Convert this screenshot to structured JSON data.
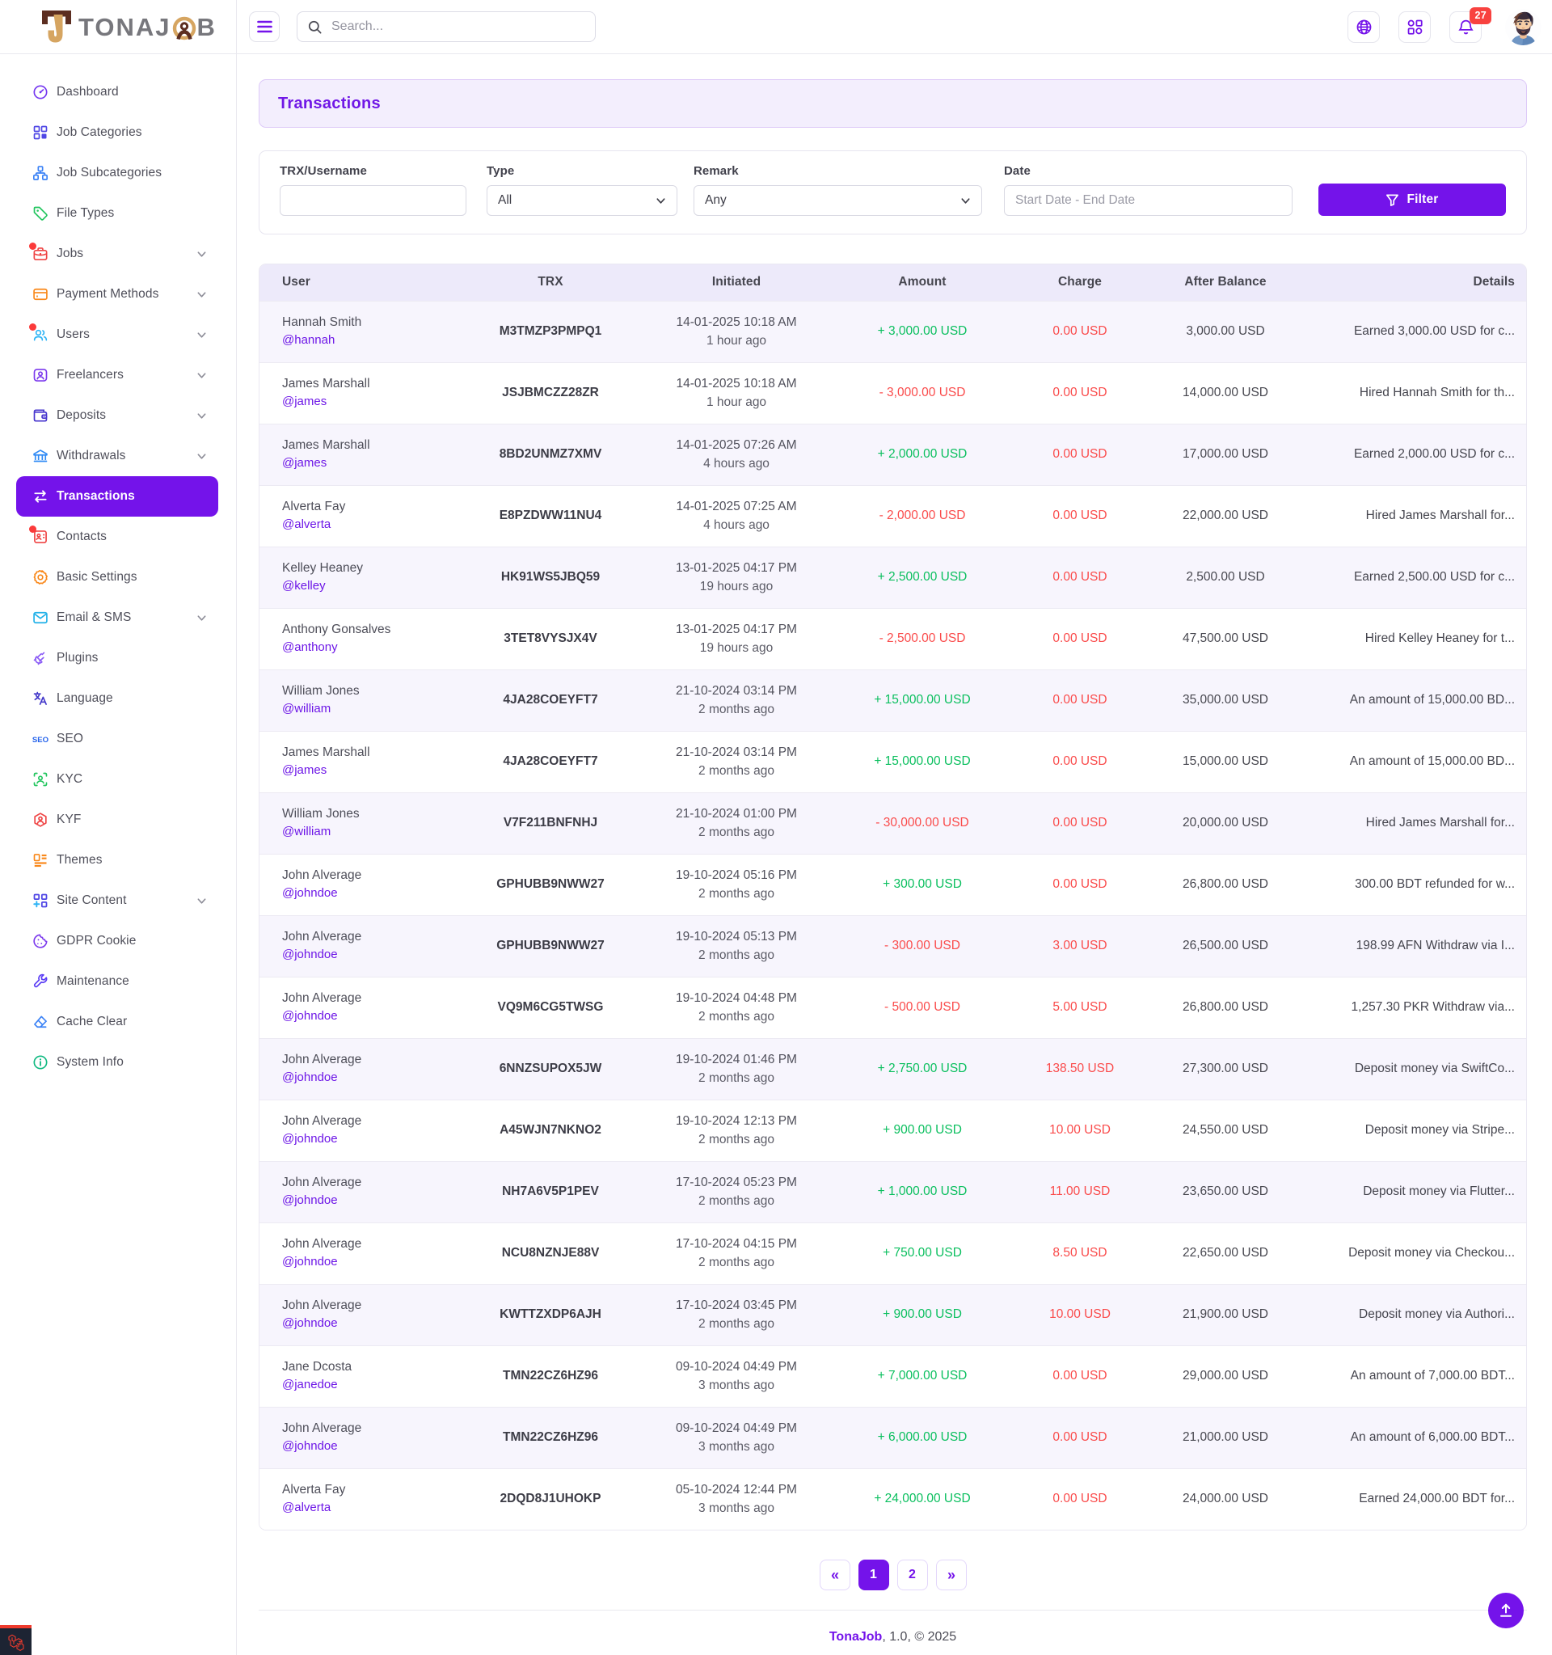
{
  "colors": {
    "accent": "#7413ea",
    "accent_soft": "#f3eefd",
    "green": "#0abf5e",
    "red": "#fa4b4b"
  },
  "brand": {
    "logo_prefix": "TONAJ",
    "logo_suffix": "B",
    "name": "TonaJob"
  },
  "topbar": {
    "search_placeholder": "Search...",
    "notification_count": "27"
  },
  "sidebar": {
    "items": [
      {
        "id": "dashboard",
        "label": "Dashboard",
        "icon": "dashboard-icon",
        "color": "#7436f0"
      },
      {
        "id": "job-categories",
        "label": "Job Categories",
        "icon": "grid-icon",
        "color": "#4f46e5"
      },
      {
        "id": "job-subcategories",
        "label": "Job Subcategories",
        "icon": "sitemap-icon",
        "color": "#3b82f6"
      },
      {
        "id": "file-types",
        "label": "File Types",
        "icon": "tag-icon",
        "color": "#22c55e"
      },
      {
        "id": "jobs",
        "label": "Jobs",
        "icon": "briefcase-icon",
        "color": "#ef4444",
        "expandable": true,
        "dot": true
      },
      {
        "id": "payment-methods",
        "label": "Payment Methods",
        "icon": "credit-card-icon",
        "color": "#f9881a",
        "expandable": true
      },
      {
        "id": "users",
        "label": "Users",
        "icon": "users-icon",
        "color": "#2fb4f5",
        "expandable": true,
        "dot": true
      },
      {
        "id": "freelancers",
        "label": "Freelancers",
        "icon": "freelancer-icon",
        "color": "#7c3aed",
        "expandable": true
      },
      {
        "id": "deposits",
        "label": "Deposits",
        "icon": "wallet-icon",
        "color": "#4634ce",
        "expandable": true
      },
      {
        "id": "withdrawals",
        "label": "Withdrawals",
        "icon": "bank-icon",
        "color": "#2f8af5",
        "expandable": true
      },
      {
        "id": "transactions",
        "label": "Transactions",
        "icon": "transactions-icon",
        "color": "#ffffff",
        "active": true
      },
      {
        "id": "contacts",
        "label": "Contacts",
        "icon": "contacts-icon",
        "color": "#ef4444",
        "dot": true
      },
      {
        "id": "basic-settings",
        "label": "Basic Settings",
        "icon": "gear-icon",
        "color": "#f9881a"
      },
      {
        "id": "email-sms",
        "label": "Email & SMS",
        "icon": "mail-icon",
        "color": "#22b1e8",
        "expandable": true
      },
      {
        "id": "plugins",
        "label": "Plugins",
        "icon": "plug-icon",
        "color": "#8b5cf6"
      },
      {
        "id": "language",
        "label": "Language",
        "icon": "translate-icon",
        "color": "#4338ca"
      },
      {
        "id": "seo",
        "label": "SEO",
        "icon": "seo-icon",
        "color": "#2563eb"
      },
      {
        "id": "kyc",
        "label": "KYC",
        "icon": "kyc-scan-icon",
        "color": "#22c55e"
      },
      {
        "id": "kyf",
        "label": "KYF",
        "icon": "kyf-hexagon-icon",
        "color": "#ef4444"
      },
      {
        "id": "themes",
        "label": "Themes",
        "icon": "themes-icon",
        "color": "#f9881a"
      },
      {
        "id": "site-content",
        "label": "Site Content",
        "icon": "site-content-icon",
        "color": "#4f46e5",
        "expandable": true
      },
      {
        "id": "gdpr-cookie",
        "label": "GDPR Cookie",
        "icon": "cookie-icon",
        "color": "#7c3aed"
      },
      {
        "id": "maintenance",
        "label": "Maintenance",
        "icon": "wrench-icon",
        "color": "#5b3df5"
      },
      {
        "id": "cache-clear",
        "label": "Cache Clear",
        "icon": "eraser-icon",
        "color": "#3b82f6"
      },
      {
        "id": "system-info",
        "label": "System Info",
        "icon": "info-icon",
        "color": "#10b981"
      }
    ]
  },
  "page": {
    "title": "Transactions"
  },
  "filters": {
    "trx_label": "TRX/Username",
    "trx_value": "",
    "type_label": "Type",
    "type_value": "All",
    "remark_label": "Remark",
    "remark_value": "Any",
    "date_label": "Date",
    "date_placeholder": "Start Date - End Date",
    "button_label": "Filter"
  },
  "table": {
    "columns": [
      "User",
      "TRX",
      "Initiated",
      "Amount",
      "Charge",
      "After Balance",
      "Details"
    ],
    "rows": [
      {
        "name": "Hannah Smith",
        "username": "@hannah",
        "trx": "M3TMZP3PMPQ1",
        "date": "14-01-2025 10:18 AM",
        "ago": "1 hour ago",
        "amount": "+ 3,000.00 USD",
        "type": "credit",
        "charge": "0.00 USD",
        "balance": "3,000.00 USD",
        "details": "Earned 3,000.00 USD for c..."
      },
      {
        "name": "James Marshall",
        "username": "@james",
        "trx": "JSJBMCZZ28ZR",
        "date": "14-01-2025 10:18 AM",
        "ago": "1 hour ago",
        "amount": "- 3,000.00 USD",
        "type": "debit",
        "charge": "0.00 USD",
        "balance": "14,000.00 USD",
        "details": "Hired Hannah Smith for th..."
      },
      {
        "name": "James Marshall",
        "username": "@james",
        "trx": "8BD2UNMZ7XMV",
        "date": "14-01-2025 07:26 AM",
        "ago": "4 hours ago",
        "amount": "+ 2,000.00 USD",
        "type": "credit",
        "charge": "0.00 USD",
        "balance": "17,000.00 USD",
        "details": "Earned 2,000.00 USD for c..."
      },
      {
        "name": "Alverta Fay",
        "username": "@alverta",
        "trx": "E8PZDWW11NU4",
        "date": "14-01-2025 07:25 AM",
        "ago": "4 hours ago",
        "amount": "- 2,000.00 USD",
        "type": "debit",
        "charge": "0.00 USD",
        "balance": "22,000.00 USD",
        "details": "Hired James Marshall for..."
      },
      {
        "name": "Kelley Heaney",
        "username": "@kelley",
        "trx": "HK91WS5JBQ59",
        "date": "13-01-2025 04:17 PM",
        "ago": "19 hours ago",
        "amount": "+ 2,500.00 USD",
        "type": "credit",
        "charge": "0.00 USD",
        "balance": "2,500.00 USD",
        "details": "Earned 2,500.00 USD for c..."
      },
      {
        "name": "Anthony Gonsalves",
        "username": "@anthony",
        "trx": "3TET8VYSJX4V",
        "date": "13-01-2025 04:17 PM",
        "ago": "19 hours ago",
        "amount": "- 2,500.00 USD",
        "type": "debit",
        "charge": "0.00 USD",
        "balance": "47,500.00 USD",
        "details": "Hired Kelley Heaney for t..."
      },
      {
        "name": "William Jones",
        "username": "@william",
        "trx": "4JA28COEYFT7",
        "date": "21-10-2024 03:14 PM",
        "ago": "2 months ago",
        "amount": "+ 15,000.00 USD",
        "type": "credit",
        "charge": "0.00 USD",
        "balance": "35,000.00 USD",
        "details": "An amount of 15,000.00 BD..."
      },
      {
        "name": "James Marshall",
        "username": "@james",
        "trx": "4JA28COEYFT7",
        "date": "21-10-2024 03:14 PM",
        "ago": "2 months ago",
        "amount": "+ 15,000.00 USD",
        "type": "credit",
        "charge": "0.00 USD",
        "balance": "15,000.00 USD",
        "details": "An amount of 15,000.00 BD..."
      },
      {
        "name": "William Jones",
        "username": "@william",
        "trx": "V7F211BNFNHJ",
        "date": "21-10-2024 01:00 PM",
        "ago": "2 months ago",
        "amount": "- 30,000.00 USD",
        "type": "debit",
        "charge": "0.00 USD",
        "balance": "20,000.00 USD",
        "details": "Hired James Marshall for..."
      },
      {
        "name": "John Alverage",
        "username": "@johndoe",
        "trx": "GPHUBB9NWW27",
        "date": "19-10-2024 05:16 PM",
        "ago": "2 months ago",
        "amount": "+ 300.00 USD",
        "type": "credit",
        "charge": "0.00 USD",
        "balance": "26,800.00 USD",
        "details": "300.00 BDT refunded for w..."
      },
      {
        "name": "John Alverage",
        "username": "@johndoe",
        "trx": "GPHUBB9NWW27",
        "date": "19-10-2024 05:13 PM",
        "ago": "2 months ago",
        "amount": "- 300.00 USD",
        "type": "debit",
        "charge": "3.00 USD",
        "balance": "26,500.00 USD",
        "details": "198.99 AFN Withdraw via I..."
      },
      {
        "name": "John Alverage",
        "username": "@johndoe",
        "trx": "VQ9M6CG5TWSG",
        "date": "19-10-2024 04:48 PM",
        "ago": "2 months ago",
        "amount": "- 500.00 USD",
        "type": "debit",
        "charge": "5.00 USD",
        "balance": "26,800.00 USD",
        "details": "1,257.30 PKR Withdraw via..."
      },
      {
        "name": "John Alverage",
        "username": "@johndoe",
        "trx": "6NNZSUPOX5JW",
        "date": "19-10-2024 01:46 PM",
        "ago": "2 months ago",
        "amount": "+ 2,750.00 USD",
        "type": "credit",
        "charge": "138.50 USD",
        "balance": "27,300.00 USD",
        "details": "Deposit money via SwiftCo..."
      },
      {
        "name": "John Alverage",
        "username": "@johndoe",
        "trx": "A45WJN7NKNO2",
        "date": "19-10-2024 12:13 PM",
        "ago": "2 months ago",
        "amount": "+ 900.00 USD",
        "type": "credit",
        "charge": "10.00 USD",
        "balance": "24,550.00 USD",
        "details": "Deposit money via Stripe..."
      },
      {
        "name": "John Alverage",
        "username": "@johndoe",
        "trx": "NH7A6V5P1PEV",
        "date": "17-10-2024 05:23 PM",
        "ago": "2 months ago",
        "amount": "+ 1,000.00 USD",
        "type": "credit",
        "charge": "11.00 USD",
        "balance": "23,650.00 USD",
        "details": "Deposit money via Flutter..."
      },
      {
        "name": "John Alverage",
        "username": "@johndoe",
        "trx": "NCU8NZNJE88V",
        "date": "17-10-2024 04:15 PM",
        "ago": "2 months ago",
        "amount": "+ 750.00 USD",
        "type": "credit",
        "charge": "8.50 USD",
        "balance": "22,650.00 USD",
        "details": "Deposit money via Checkou..."
      },
      {
        "name": "John Alverage",
        "username": "@johndoe",
        "trx": "KWTTZXDP6AJH",
        "date": "17-10-2024 03:45 PM",
        "ago": "2 months ago",
        "amount": "+ 900.00 USD",
        "type": "credit",
        "charge": "10.00 USD",
        "balance": "21,900.00 USD",
        "details": "Deposit money via Authori..."
      },
      {
        "name": "Jane Dcosta",
        "username": "@janedoe",
        "trx": "TMN22CZ6HZ96",
        "date": "09-10-2024 04:49 PM",
        "ago": "3 months ago",
        "amount": "+ 7,000.00 USD",
        "type": "credit",
        "charge": "0.00 USD",
        "balance": "29,000.00 USD",
        "details": "An amount of 7,000.00 BDT..."
      },
      {
        "name": "John Alverage",
        "username": "@johndoe",
        "trx": "TMN22CZ6HZ96",
        "date": "09-10-2024 04:49 PM",
        "ago": "3 months ago",
        "amount": "+ 6,000.00 USD",
        "type": "credit",
        "charge": "0.00 USD",
        "balance": "21,000.00 USD",
        "details": "An amount of 6,000.00 BDT..."
      },
      {
        "name": "Alverta Fay",
        "username": "@alverta",
        "trx": "2DQD8J1UHOKP",
        "date": "05-10-2024 12:44 PM",
        "ago": "3 months ago",
        "amount": "+ 24,000.00 USD",
        "type": "credit",
        "charge": "0.00 USD",
        "balance": "24,000.00 USD",
        "details": "Earned 24,000.00 BDT for..."
      }
    ]
  },
  "pagination": {
    "prev": "«",
    "pages": [
      {
        "label": "1",
        "active": true
      },
      {
        "label": "2",
        "active": false
      }
    ],
    "next": "»"
  },
  "footer": {
    "brand": "TonaJob",
    "suffix": ", 1.0, © 2025"
  }
}
